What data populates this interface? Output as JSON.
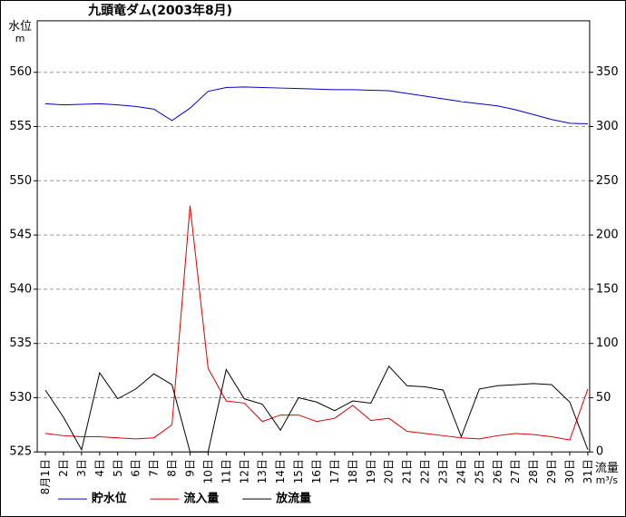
{
  "title": "九頭竜ダム(2003年8月)",
  "chart_data": {
    "type": "line",
    "title": "九頭竜ダム(2003年8月)",
    "grid": "horizontal-dashed",
    "grid_color": "#999999",
    "legend_position": "bottom",
    "categories": [
      "8月1日",
      "2日",
      "3日",
      "4日",
      "5日",
      "6日",
      "7日",
      "8日",
      "9日",
      "10日",
      "11日",
      "12日",
      "13日",
      "14日",
      "15日",
      "16日",
      "17日",
      "18日",
      "19日",
      "20日",
      "21日",
      "22日",
      "23日",
      "24日",
      "25日",
      "26日",
      "27日",
      "28日",
      "29日",
      "30日",
      "31日"
    ],
    "left_axis": {
      "label": "水位",
      "unit": "m",
      "ticks": [
        525,
        530,
        535,
        540,
        545,
        550,
        555,
        560
      ],
      "range": [
        525,
        565
      ]
    },
    "right_axis": {
      "label": "流量",
      "unit": "m³/s",
      "ticks": [
        0,
        50,
        100,
        150,
        200,
        250,
        300,
        350
      ],
      "range": [
        0,
        400
      ]
    },
    "series": [
      {
        "name": "貯水位",
        "axis": "left",
        "color": "#0000cc",
        "values": [
          557.1,
          557.0,
          557.05,
          557.1,
          557.0,
          556.85,
          556.6,
          555.55,
          556.7,
          558.25,
          558.6,
          558.65,
          558.6,
          558.55,
          558.5,
          558.45,
          558.4,
          558.4,
          558.35,
          558.3,
          558.05,
          557.8,
          557.55,
          557.3,
          557.1,
          556.9,
          556.55,
          556.1,
          555.65,
          555.3,
          555.25
        ]
      },
      {
        "name": "流入量",
        "axis": "right",
        "color": "#dd0000",
        "values": [
          17,
          15,
          14,
          14,
          13,
          12,
          13,
          25,
          227,
          77,
          47,
          45,
          28,
          34,
          34,
          28,
          31,
          43,
          29,
          31,
          19,
          17,
          15,
          13,
          12,
          15,
          17,
          16,
          14,
          11,
          58
        ]
      },
      {
        "name": "放流量",
        "axis": "right",
        "color": "#000000",
        "values": [
          57,
          32,
          2,
          73,
          49,
          58,
          72,
          62,
          0,
          0,
          76,
          49,
          44,
          20,
          50,
          46,
          38,
          47,
          45,
          79,
          61,
          60,
          57,
          14,
          58,
          61,
          62,
          63,
          62,
          46,
          2
        ]
      }
    ]
  }
}
